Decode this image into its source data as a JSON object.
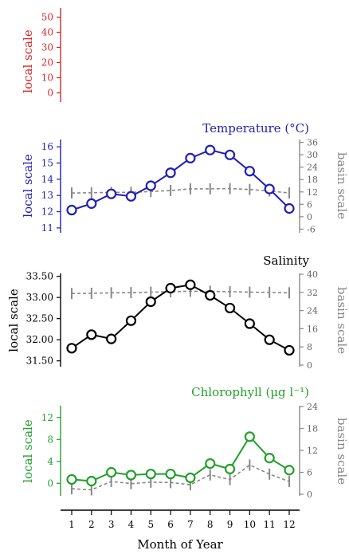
{
  "chart_data": [
    {
      "type": "line",
      "title": "",
      "ylabel": "local scale",
      "color": "#d62728",
      "ylim": [
        -5,
        55
      ],
      "yticks": [
        0,
        10,
        20,
        30,
        40,
        50
      ],
      "series": []
    },
    {
      "type": "line",
      "title": "Temperature (°C)",
      "ylabel": "local scale",
      "ylabel2": "basin scale",
      "color": "#1f1fb4",
      "ylim": [
        10.8,
        16.4
      ],
      "yticks": [
        11,
        12,
        13,
        14,
        15,
        16
      ],
      "ylim2": [
        -7,
        37
      ],
      "yticks2": [
        -6,
        0,
        6,
        12,
        18,
        24,
        30,
        36
      ],
      "series": [
        {
          "axis": "local",
          "values": [
            12.1,
            12.5,
            13.1,
            12.95,
            13.6,
            14.4,
            15.3,
            15.8,
            15.5,
            14.5,
            13.4,
            12.2
          ]
        },
        {
          "axis": "basin",
          "values": [
            11.5,
            11.6,
            11.8,
            11.8,
            12.2,
            12.7,
            13.5,
            13.5,
            13.6,
            13.2,
            12.5,
            11.5
          ],
          "style": "dashed",
          "color": "#888888"
        }
      ]
    },
    {
      "type": "line",
      "title": "Salinity",
      "ylabel": "local scale",
      "ylabel2": "basin scale",
      "color": "#000000",
      "ylim": [
        31.4,
        33.55
      ],
      "yticks": [
        31.5,
        32.0,
        32.5,
        33.0,
        33.5
      ],
      "ytick_labels": [
        "31.50",
        "32.00",
        "32.50",
        "33.00",
        "33.50"
      ],
      "ylim2": [
        0,
        40
      ],
      "yticks2": [
        0,
        8,
        16,
        24,
        32,
        40
      ],
      "series": [
        {
          "axis": "local",
          "values": [
            31.8,
            32.12,
            32.02,
            32.45,
            32.9,
            33.22,
            33.3,
            33.05,
            32.75,
            32.38,
            32.0,
            31.75
          ]
        },
        {
          "axis": "basin",
          "values": [
            31.5,
            31.6,
            31.8,
            31.9,
            32.1,
            32.3,
            32.5,
            32.5,
            32.3,
            32.1,
            32.0,
            31.8
          ],
          "style": "dashed",
          "color": "#888888"
        }
      ]
    },
    {
      "type": "line",
      "title": "Chlorophyll (µg l⁻¹)",
      "ylabel": "local scale",
      "ylabel2": "basin scale",
      "color": "#22a02a",
      "ylim": [
        -2,
        14
      ],
      "yticks": [
        0,
        4,
        8,
        12
      ],
      "ylim2": [
        0,
        24
      ],
      "yticks2": [
        0,
        6,
        12,
        18,
        24
      ],
      "xlabel": "Month of Year",
      "xticks": [
        1,
        2,
        3,
        4,
        5,
        6,
        7,
        8,
        9,
        10,
        11,
        12
      ],
      "series": [
        {
          "axis": "local",
          "values": [
            0.7,
            0.4,
            2.0,
            1.5,
            1.7,
            1.7,
            1.0,
            3.6,
            2.6,
            8.5,
            4.6,
            2.4
          ]
        },
        {
          "axis": "basin",
          "values": [
            1.5,
            1.2,
            3.5,
            2.9,
            3.3,
            3.2,
            2.6,
            5.3,
            4.0,
            8.0,
            5.5,
            3.5
          ],
          "style": "dashed",
          "color": "#888888"
        }
      ]
    }
  ]
}
